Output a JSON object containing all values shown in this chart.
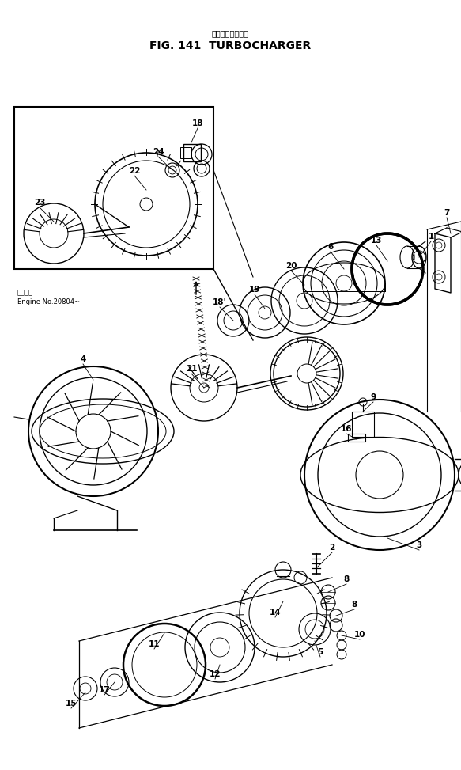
{
  "title_jp": "ターボチャージャ",
  "title_en": "FIG. 141  TURBOCHARGER",
  "bg_color": "#ffffff",
  "line_color": "#000000",
  "fig_width": 5.83,
  "fig_height": 9.73,
  "engine_note": "Engine No.20804~"
}
